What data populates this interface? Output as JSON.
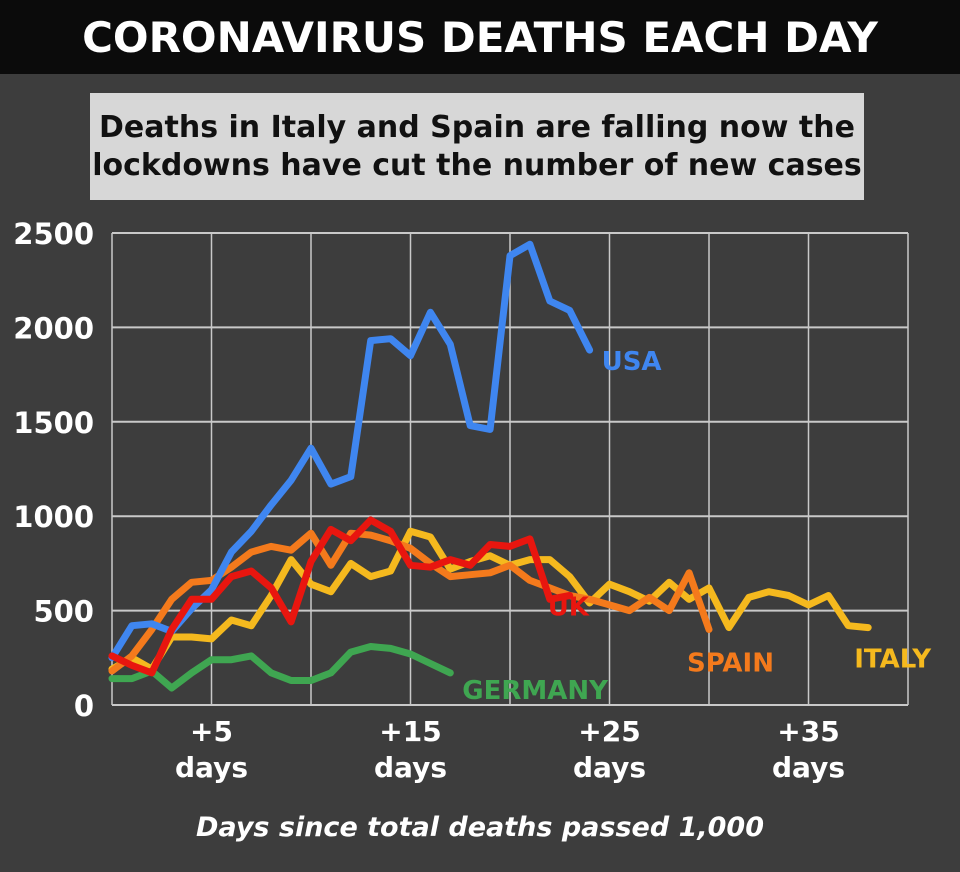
{
  "header": {
    "title": "CORONAVIRUS DEATHS EACH DAY",
    "subtitle_line1": "Deaths in Italy and Spain are falling now the",
    "subtitle_line2": "lockdowns have cut the number of new cases"
  },
  "chart_data": {
    "type": "line",
    "xlabel": "Days since total deaths passed 1,000",
    "ylabel": "",
    "xlim": [
      0,
      40
    ],
    "ylim": [
      0,
      2500
    ],
    "yticks": [
      0,
      500,
      1000,
      1500,
      2000,
      2500
    ],
    "xticks": [
      {
        "x": 5,
        "top": "+5",
        "bottom": "days"
      },
      {
        "x": 15,
        "top": "+15",
        "bottom": "days"
      },
      {
        "x": 25,
        "top": "+25",
        "bottom": "days"
      },
      {
        "x": 35,
        "top": "+35",
        "bottom": "days"
      }
    ],
    "grid": true,
    "series": [
      {
        "name": "USA",
        "color": "#3f86f0",
        "x": [
          0,
          1,
          2,
          3,
          4,
          5,
          6,
          7,
          8,
          9,
          10,
          11,
          12,
          13,
          14,
          15,
          16,
          17,
          18,
          19,
          20,
          21,
          22,
          23,
          24
        ],
        "values": [
          250,
          420,
          430,
          390,
          510,
          610,
          810,
          920,
          1060,
          1190,
          1360,
          1170,
          1210,
          1930,
          1940,
          1850,
          2080,
          1910,
          1480,
          1460,
          2380,
          2440,
          2140,
          2090,
          1880
        ]
      },
      {
        "name": "ITALY",
        "color": "#f5b91e",
        "x": [
          0,
          1,
          2,
          3,
          4,
          5,
          6,
          7,
          8,
          9,
          10,
          11,
          12,
          13,
          14,
          15,
          16,
          17,
          18,
          19,
          20,
          21,
          22,
          23,
          24,
          25,
          26,
          27,
          28,
          29,
          30,
          31,
          32,
          33,
          34,
          35,
          36,
          37,
          38
        ],
        "values": [
          190,
          250,
          190,
          360,
          360,
          350,
          450,
          420,
          580,
          770,
          640,
          600,
          750,
          680,
          710,
          920,
          890,
          720,
          760,
          790,
          740,
          770,
          770,
          680,
          540,
          640,
          600,
          550,
          650,
          560,
          620,
          410,
          570,
          600,
          580,
          530,
          580,
          420,
          410
        ]
      },
      {
        "name": "SPAIN",
        "color": "#f47a1c",
        "x": [
          0,
          1,
          2,
          3,
          4,
          5,
          6,
          7,
          8,
          9,
          10,
          11,
          12,
          13,
          14,
          15,
          16,
          17,
          18,
          19,
          20,
          21,
          22,
          23,
          24,
          25,
          26,
          27,
          28,
          29,
          30
        ],
        "values": [
          180,
          260,
          400,
          560,
          650,
          660,
          730,
          810,
          840,
          820,
          910,
          740,
          910,
          900,
          870,
          830,
          750,
          680,
          690,
          700,
          740,
          660,
          620,
          580,
          560,
          530,
          500,
          570,
          500,
          700,
          400
        ]
      },
      {
        "name": "UK",
        "color": "#e8160f",
        "x": [
          0,
          1,
          2,
          3,
          4,
          5,
          6,
          7,
          8,
          9,
          10,
          11,
          12,
          13,
          14,
          15,
          16,
          17,
          18,
          19,
          20,
          21,
          22,
          23
        ],
        "values": [
          260,
          210,
          170,
          400,
          560,
          560,
          680,
          710,
          620,
          440,
          760,
          930,
          870,
          980,
          920,
          740,
          730,
          770,
          740,
          850,
          840,
          880,
          560,
          580
        ]
      },
      {
        "name": "GERMANY",
        "color": "#3fa651",
        "x": [
          0,
          1,
          2,
          3,
          4,
          5,
          6,
          7,
          8,
          9,
          10,
          11,
          12,
          13,
          14,
          15,
          16,
          17
        ],
        "values": [
          140,
          140,
          180,
          90,
          170,
          240,
          240,
          260,
          170,
          130,
          130,
          170,
          280,
          310,
          300,
          270,
          220,
          170
        ]
      }
    ],
    "labels": {
      "usa": "USA",
      "italy": "ITALY",
      "spain": "SPAIN",
      "uk": "UK",
      "germany": "GERMANY"
    }
  }
}
